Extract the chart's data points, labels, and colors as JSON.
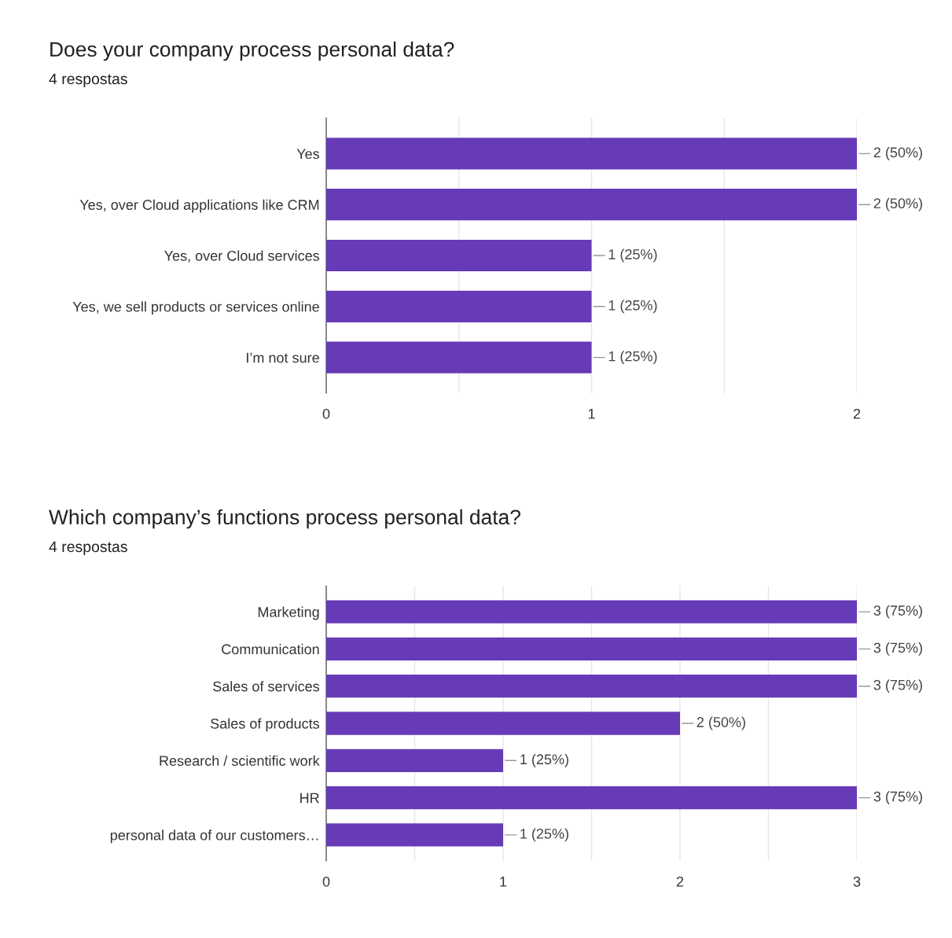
{
  "chart_data": [
    {
      "type": "bar",
      "orientation": "horizontal",
      "title": "Does your company process personal data?",
      "subtitle": "4 respostas",
      "categories": [
        "Yes",
        "Yes, over Cloud applications like CRM",
        "Yes, over Cloud services",
        "Yes, we sell products or services online",
        "I’m not sure"
      ],
      "values": [
        2,
        2,
        1,
        1,
        1
      ],
      "value_labels": [
        "2 (50%)",
        "2 (50%)",
        "1 (25%)",
        "1 (25%)",
        "1 (25%)"
      ],
      "color": "#673ab7",
      "xlim": [
        0,
        2
      ],
      "xticks": [
        0,
        {
          "value": 0.5,
          "label": null
        },
        1,
        {
          "value": 1.5,
          "label": null
        },
        2
      ],
      "grid": "x"
    },
    {
      "type": "bar",
      "orientation": "horizontal",
      "title": "Which company’s functions process personal data?",
      "subtitle": "4 respostas",
      "categories": [
        "Marketing",
        "Communication",
        "Sales of services",
        "Sales of products",
        "Research / scientific work",
        "HR",
        "personal data of our customers…"
      ],
      "values": [
        3,
        3,
        3,
        2,
        1,
        3,
        1
      ],
      "value_labels": [
        "3 (75%)",
        "3 (75%)",
        "3 (75%)",
        "2 (50%)",
        "1 (25%)",
        "3 (75%)",
        "1 (25%)"
      ],
      "color": "#673ab7",
      "xlim": [
        0,
        3
      ],
      "xticks": [
        0,
        {
          "value": 0.5,
          "label": null
        },
        1,
        {
          "value": 1.5,
          "label": null
        },
        2,
        {
          "value": 2.5,
          "label": null
        },
        3
      ],
      "grid": "x"
    }
  ]
}
